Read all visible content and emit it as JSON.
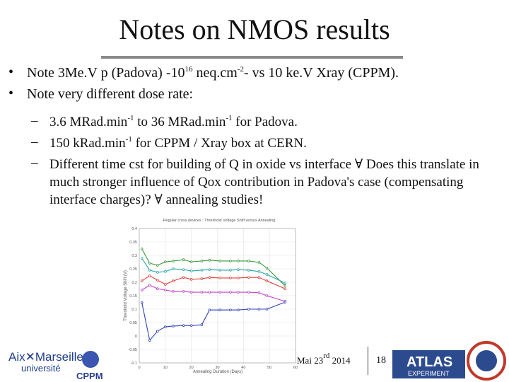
{
  "header": {
    "title": "Notes on NMOS results"
  },
  "bullets": [
    [
      "Note 3Me.V p (Padova) -10",
      "16",
      " neq.cm",
      "-2",
      "- vs 10 ke.V Xray (CPPM)."
    ],
    [
      "Note very different dose rate:"
    ]
  ],
  "sub_bullets": [
    [
      "3.6 MRad.min",
      "-1",
      " to 36 MRad.min",
      "-1",
      " for Padova."
    ],
    [
      "150 kRad.min",
      "-1",
      " for CPPM / Xray box at CERN."
    ],
    [
      "Different time cst for building of Q in oxide vs interface ∀  Does this translate in much stronger influence of Qox contribution in Padova's case (compensating interface charges)? ∀ annealing studies!"
    ]
  ],
  "chart_data": {
    "type": "line",
    "title": "Regular cross devices : Threshold Voltage Shift versus Annealing",
    "x_label": "Annealing Duration (Days)",
    "y_label": "Threshold Voltage Shift (V)",
    "x": [
      1,
      4,
      7,
      10,
      13,
      17,
      20,
      24,
      27,
      31,
      35,
      38,
      42,
      46,
      49,
      56
    ],
    "series": [
      {
        "color": "#3a9a3a",
        "values": [
          0.324,
          0.271,
          0.263,
          0.276,
          0.279,
          0.284,
          0.276,
          0.279,
          0.282,
          0.279,
          0.279,
          0.279,
          0.279,
          0.274,
          0.253,
          0.187
        ]
      },
      {
        "color": "#2aa5a0",
        "values": [
          0.289,
          0.245,
          0.237,
          0.24,
          0.25,
          0.247,
          0.242,
          0.245,
          0.247,
          0.245,
          0.245,
          0.247,
          0.245,
          0.24,
          0.229,
          0.197
        ]
      },
      {
        "color": "#e0403a",
        "values": [
          0.205,
          0.224,
          0.208,
          0.192,
          0.205,
          0.218,
          0.211,
          0.213,
          0.218,
          0.216,
          0.216,
          0.216,
          0.218,
          0.218,
          0.205,
          0.176
        ]
      },
      {
        "color": "#c040c8",
        "values": [
          0.171,
          0.189,
          0.176,
          0.171,
          0.166,
          0.166,
          0.163,
          0.163,
          0.163,
          0.163,
          0.163,
          0.163,
          0.163,
          0.161,
          0.15,
          0.129
        ]
      },
      {
        "color": "#3040b8",
        "values": [
          0.124,
          -0.016,
          0.018,
          0.034,
          0.037,
          0.039,
          0.039,
          0.042,
          0.097,
          0.097,
          0.097,
          0.097,
          0.1,
          0.1,
          0.1,
          0.126
        ]
      }
    ],
    "xlim": [
      0,
      60
    ],
    "xticks": [
      0,
      10,
      20,
      30,
      40,
      50,
      60
    ],
    "ylim": [
      -0.1,
      0.4
    ],
    "yticks": [
      -0.1,
      -0.05,
      0,
      0.05,
      0.1,
      0.15,
      0.2,
      0.25,
      0.3,
      0.35,
      0.4
    ],
    "grid": true
  },
  "footer": {
    "date": [
      "Mai 23",
      "rd",
      " 2014"
    ],
    "page": "18",
    "logos": {
      "aix": "Aix✕Marseille",
      "aix_sub": "université",
      "cppm": "CPPM",
      "atlas": "ATLAS",
      "atlas_sub": "EXPERIMENT"
    }
  }
}
